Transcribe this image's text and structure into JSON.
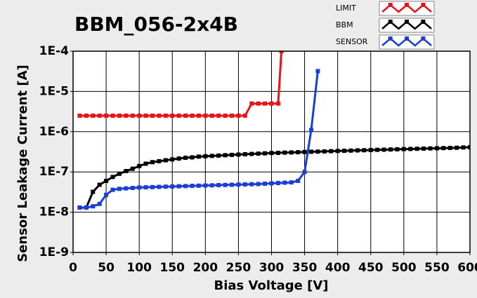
{
  "chart_data": {
    "type": "line",
    "title": "BBM_056-2x4B",
    "x_label": "Bias Voltage [V]",
    "y_label": "Sensor Leakage Current [A]",
    "y_scale": "log",
    "grid": true,
    "legend_position": "top-right",
    "xlim": [
      0,
      600
    ],
    "xticks": [
      0,
      50,
      100,
      150,
      200,
      250,
      300,
      350,
      400,
      450,
      500,
      550,
      600
    ],
    "ylim": [
      1e-09,
      0.0001
    ],
    "yticks": [
      {
        "value": 1e-09,
        "label": "1E-9"
      },
      {
        "value": 1e-08,
        "label": "1E-8"
      },
      {
        "value": 1e-07,
        "label": "1E-7"
      },
      {
        "value": 1e-06,
        "label": "1E-6"
      },
      {
        "value": 1e-05,
        "label": "1E-5"
      },
      {
        "value": 0.0001,
        "label": "1E-4"
      }
    ],
    "series": [
      {
        "name": "LIMIT",
        "color": "#e8141c",
        "x": [
          10,
          20,
          30,
          40,
          50,
          60,
          70,
          80,
          90,
          100,
          110,
          120,
          130,
          140,
          150,
          160,
          170,
          180,
          190,
          200,
          210,
          220,
          230,
          240,
          250,
          260,
          270,
          280,
          290,
          300,
          310,
          315
        ],
        "values": [
          2.5e-06,
          2.5e-06,
          2.5e-06,
          2.5e-06,
          2.5e-06,
          2.5e-06,
          2.5e-06,
          2.5e-06,
          2.5e-06,
          2.5e-06,
          2.5e-06,
          2.5e-06,
          2.5e-06,
          2.5e-06,
          2.5e-06,
          2.5e-06,
          2.5e-06,
          2.5e-06,
          2.5e-06,
          2.5e-06,
          2.5e-06,
          2.5e-06,
          2.5e-06,
          2.5e-06,
          2.5e-06,
          2.5e-06,
          5e-06,
          5e-06,
          5e-06,
          5e-06,
          5e-06,
          0.0001
        ]
      },
      {
        "name": "BBM",
        "color": "#000000",
        "x": [
          10,
          20,
          30,
          40,
          50,
          60,
          70,
          80,
          90,
          100,
          110,
          120,
          130,
          140,
          150,
          160,
          170,
          180,
          190,
          200,
          210,
          220,
          230,
          240,
          250,
          260,
          270,
          280,
          290,
          300,
          310,
          320,
          330,
          340,
          350,
          360,
          370,
          380,
          390,
          400,
          410,
          420,
          430,
          440,
          450,
          460,
          470,
          480,
          490,
          500,
          510,
          520,
          530,
          540,
          550,
          560,
          570,
          580,
          590,
          600
        ],
        "values": [
          1.3e-08,
          1.3e-08,
          3.2e-08,
          4.8e-08,
          6e-08,
          7.5e-08,
          9e-08,
          1.05e-07,
          1.2e-07,
          1.4e-07,
          1.6e-07,
          1.75e-07,
          1.85e-07,
          1.95e-07,
          2.05e-07,
          2.15e-07,
          2.25e-07,
          2.3e-07,
          2.4e-07,
          2.45e-07,
          2.5e-07,
          2.55e-07,
          2.6e-07,
          2.65e-07,
          2.7e-07,
          2.75e-07,
          2.8e-07,
          2.85e-07,
          2.9e-07,
          2.95e-07,
          2.98e-07,
          3.02e-07,
          3.05e-07,
          3.09e-07,
          3.13e-07,
          3.17e-07,
          3.2e-07,
          3.24e-07,
          3.28e-07,
          3.32e-07,
          3.35e-07,
          3.39e-07,
          3.43e-07,
          3.46e-07,
          3.5e-07,
          3.54e-07,
          3.57e-07,
          3.61e-07,
          3.65e-07,
          3.69e-07,
          3.72e-07,
          3.76e-07,
          3.8e-07,
          3.84e-07,
          3.87e-07,
          3.91e-07,
          3.95e-07,
          3.99e-07,
          4.05e-07,
          4.1e-07
        ]
      },
      {
        "name": "SENSOR",
        "color": "#1a3ed6",
        "x": [
          10,
          20,
          30,
          40,
          50,
          60,
          70,
          80,
          90,
          100,
          110,
          120,
          130,
          140,
          150,
          160,
          170,
          180,
          190,
          200,
          210,
          220,
          230,
          240,
          250,
          260,
          270,
          280,
          290,
          300,
          310,
          320,
          330,
          340,
          350,
          360,
          370
        ],
        "values": [
          1.3e-08,
          1.3e-08,
          1.4e-08,
          1.6e-08,
          2.7e-08,
          3.6e-08,
          3.8e-08,
          3.9e-08,
          4e-08,
          4.1e-08,
          4.15e-08,
          4.2e-08,
          4.25e-08,
          4.3e-08,
          4.35e-08,
          4.4e-08,
          4.45e-08,
          4.5e-08,
          4.55e-08,
          4.6e-08,
          4.65e-08,
          4.7e-08,
          4.75e-08,
          4.8e-08,
          4.85e-08,
          4.9e-08,
          4.95e-08,
          5e-08,
          5.1e-08,
          5.2e-08,
          5.3e-08,
          5.4e-08,
          5.5e-08,
          6e-08,
          1e-07,
          1.1e-06,
          3.2e-05
        ]
      }
    ]
  }
}
